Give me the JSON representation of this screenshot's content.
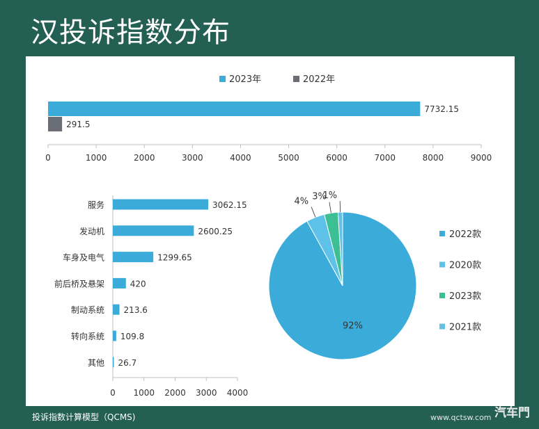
{
  "page_title": "汉投诉指数分布",
  "footer_note": "投诉指数计算模型（QCMS)",
  "watermark": {
    "url": "www.qctsw.com",
    "logo_text": "汽车門"
  },
  "colors": {
    "background": "#245f54",
    "series_2023": "#3bacd9",
    "series_2022": "#6b6e75"
  },
  "chart_data": [
    {
      "type": "bar",
      "orientation": "horizontal",
      "categories": [
        ""
      ],
      "series": [
        {
          "name": "2023年",
          "values": [
            7732.15
          ],
          "value_labels": [
            "7732.15"
          ],
          "color": "#3bacd9"
        },
        {
          "name": "2022年",
          "values": [
            291.5
          ],
          "value_labels": [
            "291.5"
          ],
          "color": "#6b6e75"
        }
      ],
      "xlim": [
        0,
        9000
      ],
      "xticks": [
        0,
        1000,
        2000,
        3000,
        4000,
        5000,
        6000,
        7000,
        8000,
        9000
      ],
      "xtick_labels": [
        "0",
        "1000",
        "2000",
        "3000",
        "4000",
        "5000",
        "6000",
        "7000",
        "8000",
        "9000"
      ],
      "legend_position": "top",
      "grid": false
    },
    {
      "type": "bar",
      "orientation": "horizontal",
      "categories": [
        "服务",
        "发动机",
        "车身及电气",
        "前后桥及悬架",
        "制动系统",
        "转向系统",
        "其他"
      ],
      "values": [
        3062.15,
        2600.25,
        1299.65,
        420,
        213.6,
        109.8,
        26.7
      ],
      "value_labels": [
        "3062.15",
        "2600.25",
        "1299.65",
        "420",
        "213.6",
        "109.8",
        "26.7"
      ],
      "color": "#3bacd9",
      "xlim": [
        0,
        4000
      ],
      "xticks": [
        0,
        1000,
        2000,
        3000,
        4000
      ],
      "xtick_labels": [
        "0",
        "1000",
        "2000",
        "3000",
        "4000"
      ],
      "grid": false
    },
    {
      "type": "pie",
      "slices": [
        {
          "label": "2022款",
          "value": 92,
          "pct_label": "92%",
          "color": "#3bacd9"
        },
        {
          "label": "2020款",
          "value": 4,
          "pct_label": "4%",
          "color": "#5ec1e8"
        },
        {
          "label": "2023款",
          "value": 3,
          "pct_label": "3%",
          "color": "#3cbf93"
        },
        {
          "label": "2021款",
          "value": 1,
          "pct_label": "1%",
          "color": "#67bfe3"
        }
      ],
      "legend_position": "right"
    }
  ]
}
